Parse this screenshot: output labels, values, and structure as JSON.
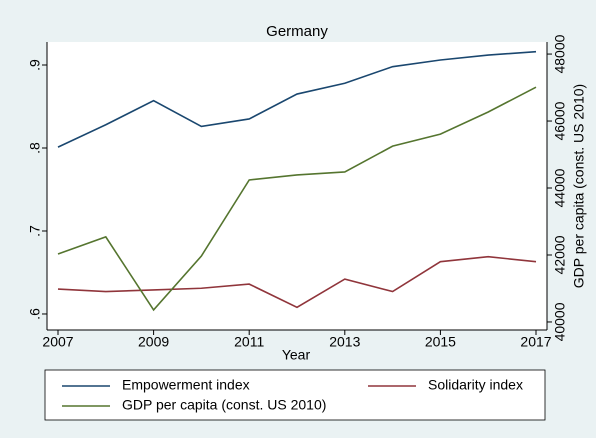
{
  "chart_data": {
    "type": "line",
    "title": "Germany",
    "xlabel": "Year",
    "y2label": "GDP per capita (const. US 2010)",
    "x": [
      2007,
      2008,
      2009,
      2010,
      2011,
      2012,
      2013,
      2014,
      2015,
      2016,
      2017
    ],
    "series": [
      {
        "name": "Empowerment index",
        "color": "#1a476f",
        "values": [
          0.801,
          0.828,
          0.857,
          0.826,
          0.835,
          0.865,
          0.878,
          0.898,
          0.906,
          0.912,
          0.916
        ]
      },
      {
        "name": "Solidarity index",
        "color": "#90353b",
        "values": [
          0.63,
          0.627,
          0.629,
          0.631,
          0.636,
          0.608,
          0.642,
          0.627,
          0.663,
          0.669,
          0.663
        ]
      },
      {
        "name": "GDP per capita (const. US 2010)",
        "color": "#55752f",
        "axis": "y2",
        "values": [
          42030,
          42540,
          40360,
          41970,
          44240,
          44390,
          44480,
          45250,
          45610,
          46270,
          47010
        ]
      }
    ],
    "xlim": [
      2006.77,
      2017.23
    ],
    "xticks": [
      2007,
      2009,
      2011,
      2013,
      2015,
      2017
    ],
    "ylim": [
      0.5807,
      0.9277
    ],
    "yticks": [
      {
        "value": 0.6,
        "label": ".6"
      },
      {
        "value": 0.7,
        "label": ".7"
      },
      {
        "value": 0.8,
        "label": ".8"
      },
      {
        "value": 0.9,
        "label": ".9"
      }
    ],
    "y2lim": [
      39760,
      48360
    ],
    "y2ticks": [
      40000,
      42000,
      44000,
      46000,
      48000
    ],
    "grid": false
  }
}
